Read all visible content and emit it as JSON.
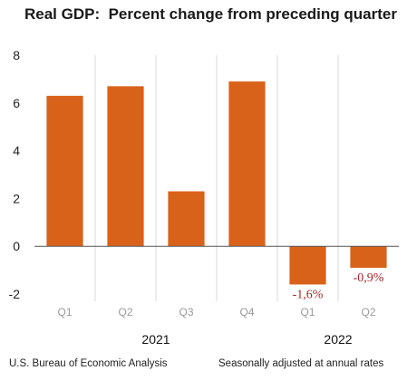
{
  "chart_data": {
    "type": "bar",
    "title": "Real GDP:  Percent change from preceding quarter",
    "categories": [
      "Q1",
      "Q2",
      "Q3",
      "Q4",
      "Q1",
      "Q2"
    ],
    "years": [
      {
        "label": "2021",
        "quarters": [
          "Q1",
          "Q2",
          "Q3",
          "Q4"
        ]
      },
      {
        "label": "2022",
        "quarters": [
          "Q1",
          "Q2"
        ]
      }
    ],
    "values": [
      6.3,
      6.7,
      2.3,
      6.9,
      -1.6,
      -0.9
    ],
    "data_labels": [
      "",
      "",
      "",
      "",
      "-1,6%",
      "-0,9%"
    ],
    "y_ticks": [
      "8",
      "6",
      "4",
      "2",
      "0",
      "-2"
    ],
    "ylim": [
      -2,
      8
    ],
    "xlabel": "",
    "ylabel": "",
    "grid": "vertical",
    "bar_color": "#d9621a",
    "label_color": "#a0282a",
    "source": "U.S. Bureau of Economic Analysis",
    "note": "Seasonally adjusted at annual rates"
  }
}
